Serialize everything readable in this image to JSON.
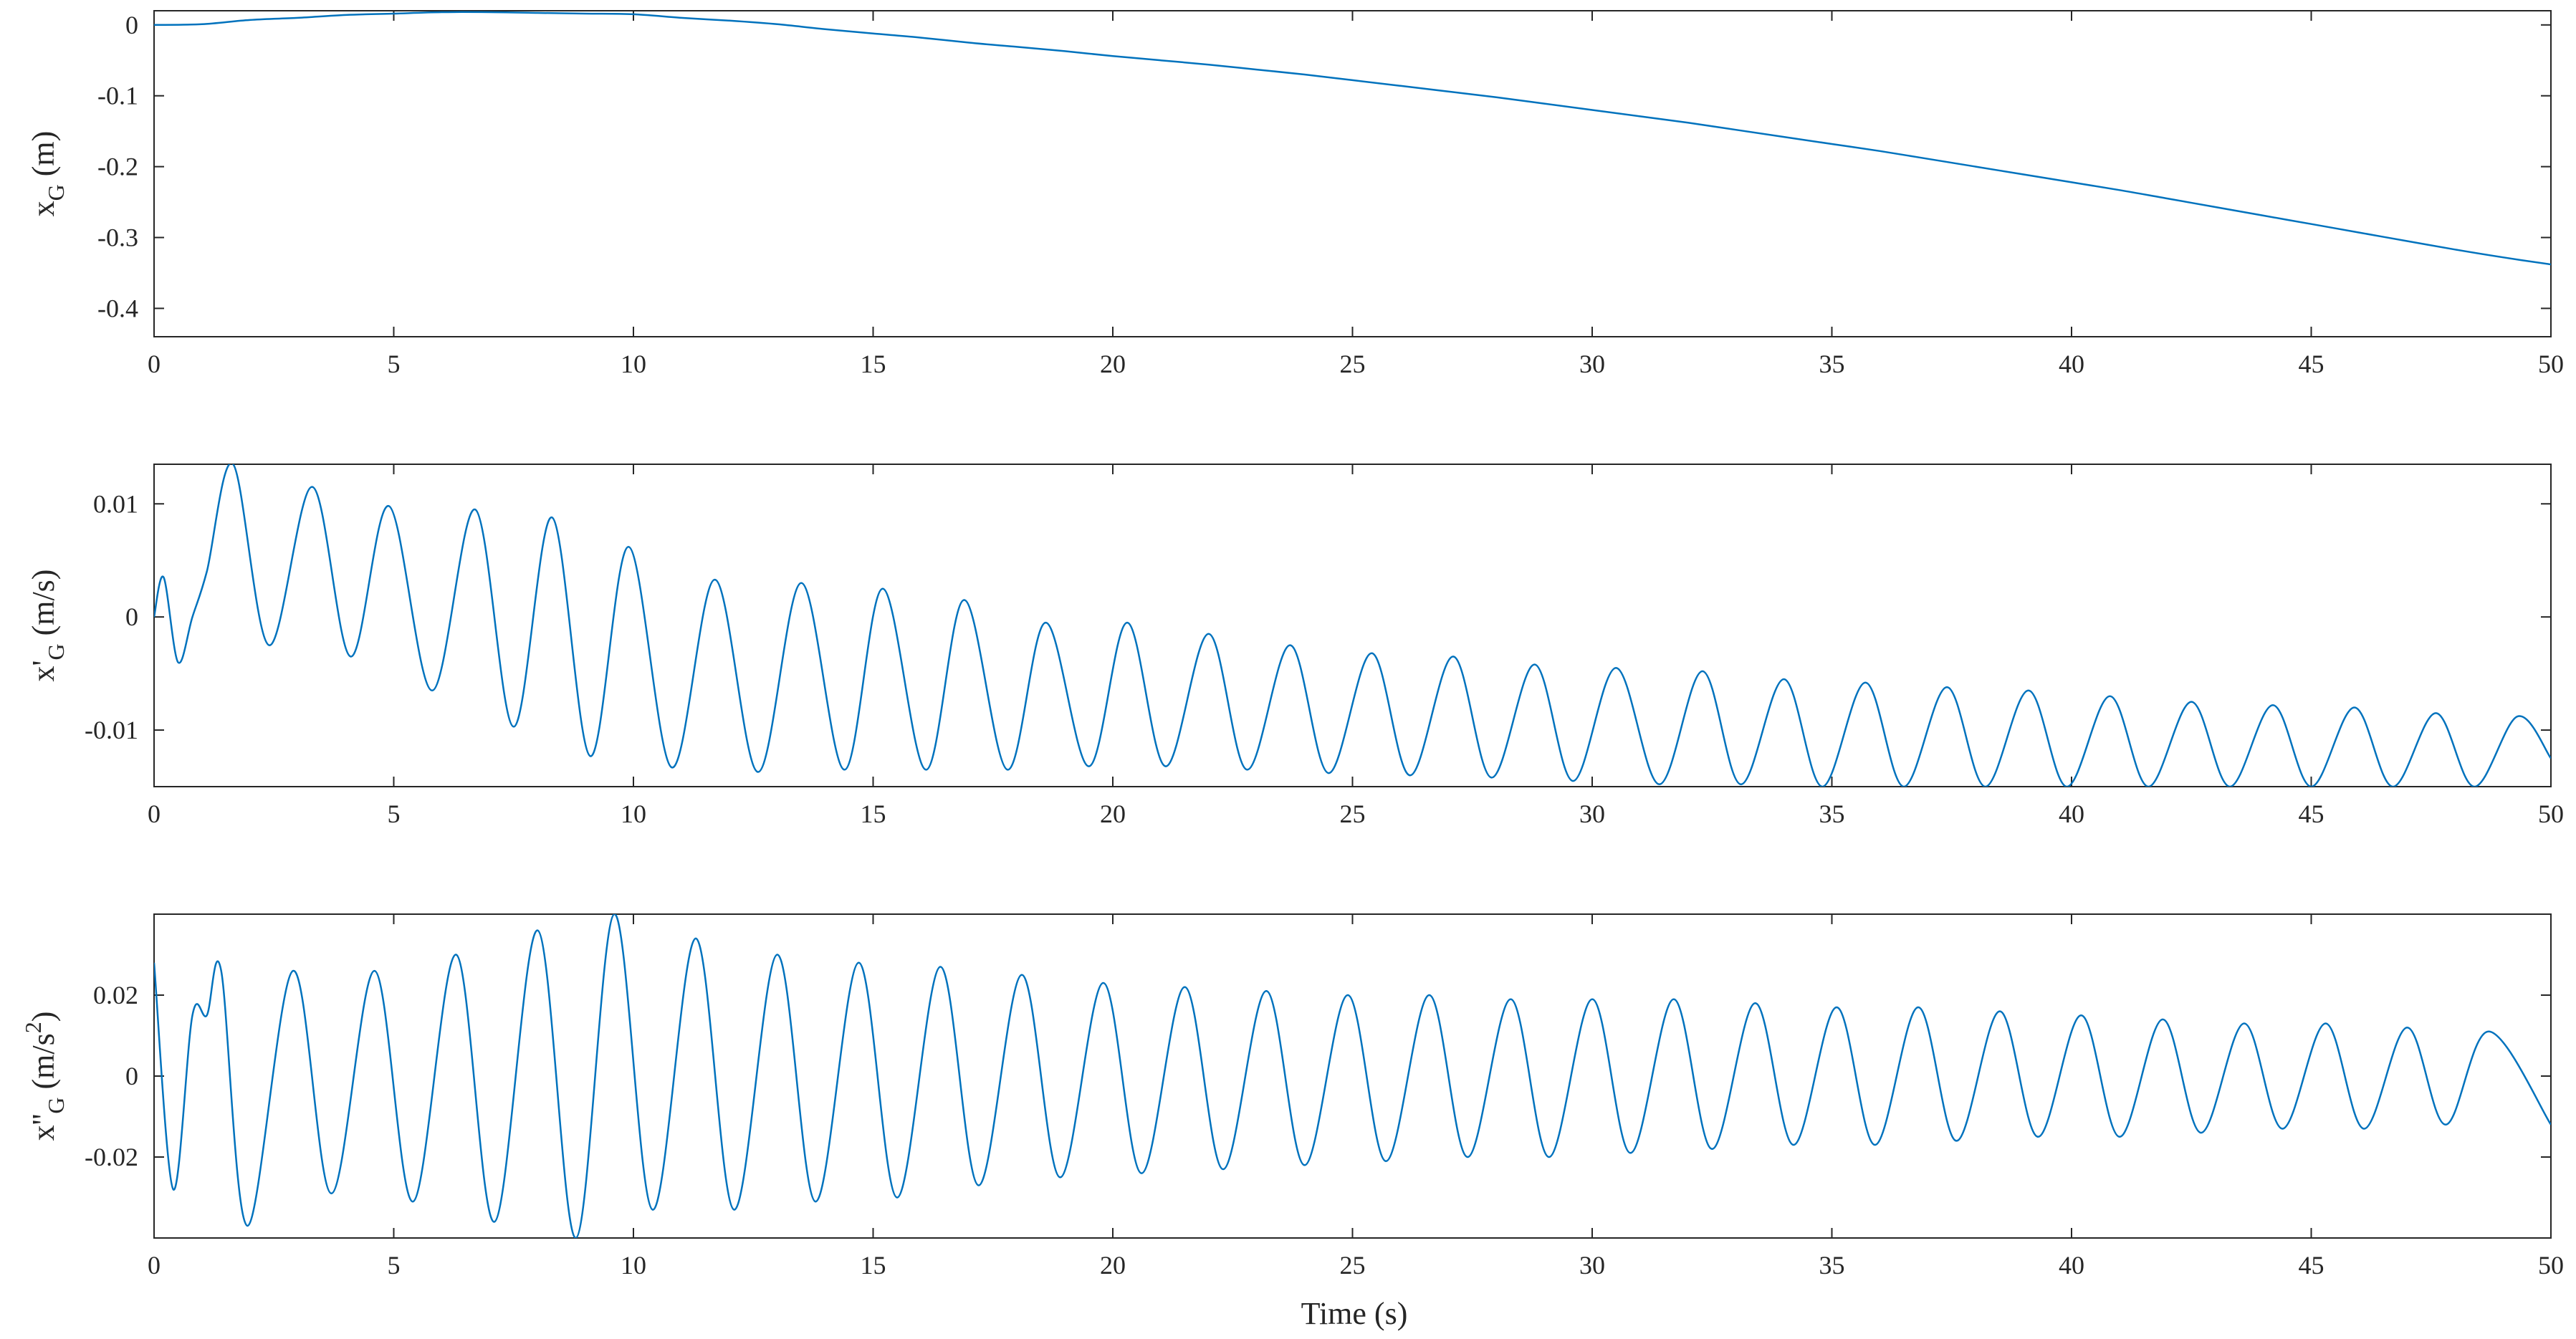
{
  "chart_data": [
    {
      "type": "line",
      "ylabel": {
        "base": "x",
        "sub": "G",
        "unit": " (m)",
        "sup": ""
      },
      "xlabel": "",
      "xlim": [
        0,
        50
      ],
      "ylim": [
        -0.44,
        0.02
      ],
      "xticks": [
        0,
        5,
        10,
        15,
        20,
        25,
        30,
        35,
        40,
        45,
        50
      ],
      "yticks": [
        0,
        -0.1,
        -0.2,
        -0.3,
        -0.4
      ],
      "ytick_labels": [
        "0",
        "-0.1",
        "-0.2",
        "-0.3",
        "-0.4"
      ],
      "grid": false,
      "series": [
        {
          "color": "#0072BD",
          "x": [
            0,
            1,
            2,
            3,
            4,
            5,
            6,
            7,
            8,
            9,
            10,
            11,
            12,
            13,
            14,
            15,
            16,
            17,
            18,
            19,
            20,
            21,
            22,
            23,
            24,
            25,
            26,
            27,
            28,
            29,
            30,
            31,
            32,
            33,
            34,
            35,
            36,
            37,
            38,
            39,
            40,
            41,
            42,
            43,
            44,
            45,
            46,
            47,
            48,
            49,
            50
          ],
          "values": [
            0.0,
            0.001,
            0.007,
            0.01,
            0.014,
            0.016,
            0.018,
            0.018,
            0.017,
            0.016,
            0.015,
            0.01,
            0.006,
            0.001,
            -0.006,
            -0.012,
            -0.018,
            -0.025,
            -0.031,
            -0.037,
            -0.044,
            -0.05,
            -0.056,
            -0.063,
            -0.07,
            -0.078,
            -0.086,
            -0.094,
            -0.102,
            -0.111,
            -0.12,
            -0.129,
            -0.138,
            -0.148,
            -0.158,
            -0.168,
            -0.178,
            -0.189,
            -0.2,
            -0.211,
            -0.222,
            -0.233,
            -0.245,
            -0.257,
            -0.269,
            -0.281,
            -0.293,
            -0.305,
            -0.317,
            -0.328,
            -0.338
          ]
        }
      ]
    },
    {
      "type": "line",
      "ylabel": {
        "base": "x'",
        "sub": "G",
        "unit": " (m/s)",
        "sup": ""
      },
      "xlabel": "",
      "xlim": [
        0,
        50
      ],
      "ylim": [
        -0.015,
        0.0135
      ],
      "xticks": [
        0,
        5,
        10,
        15,
        20,
        25,
        30,
        35,
        40,
        45,
        50
      ],
      "yticks": [
        0.01,
        0,
        -0.01
      ],
      "ytick_labels": [
        "0.01",
        "0",
        "-0.01"
      ],
      "grid": false,
      "series": [
        {
          "color": "#0072BD",
          "x": [
            0,
            0.2,
            0.5,
            0.8,
            1.1,
            1.65,
            2.4,
            3.3,
            4.1,
            4.9,
            5.8,
            6.7,
            7.5,
            8.3,
            9.1,
            9.9,
            10.8,
            11.7,
            12.6,
            13.5,
            14.4,
            15.2,
            16.1,
            16.9,
            17.8,
            18.6,
            19.5,
            20.3,
            21.1,
            22.0,
            22.8,
            23.7,
            24.5,
            25.4,
            26.2,
            27.1,
            27.9,
            28.8,
            29.6,
            30.5,
            31.4,
            32.3,
            33.1,
            34.0,
            34.8,
            35.7,
            36.5,
            37.4,
            38.2,
            39.1,
            39.9,
            40.8,
            41.6,
            42.5,
            43.3,
            44.2,
            45.0,
            45.9,
            46.7,
            47.6,
            48.4,
            49.3,
            50.0
          ],
          "values": [
            0.0,
            0.0035,
            -0.004,
            0.0,
            0.004,
            0.0135,
            -0.0025,
            0.0115,
            -0.0035,
            0.0098,
            -0.0065,
            0.0095,
            -0.0097,
            0.0088,
            -0.0123,
            0.0062,
            -0.0133,
            0.0033,
            -0.0137,
            0.003,
            -0.0135,
            0.0025,
            -0.0135,
            0.0015,
            -0.0135,
            -0.0005,
            -0.0132,
            -0.0005,
            -0.0132,
            -0.0015,
            -0.0135,
            -0.0025,
            -0.0138,
            -0.0032,
            -0.014,
            -0.0035,
            -0.0142,
            -0.0042,
            -0.0145,
            -0.0045,
            -0.0148,
            -0.0048,
            -0.0148,
            -0.0055,
            -0.015,
            -0.0058,
            -0.015,
            -0.0062,
            -0.015,
            -0.0065,
            -0.015,
            -0.007,
            -0.015,
            -0.0075,
            -0.015,
            -0.0078,
            -0.015,
            -0.008,
            -0.015,
            -0.0085,
            -0.015,
            -0.0088,
            -0.0125
          ]
        }
      ]
    },
    {
      "type": "line",
      "ylabel": {
        "base": "x''",
        "sub": "G",
        "unit": " (m/s",
        "sup": "2"
      },
      "xlabel": "Time (s)",
      "xlim": [
        0,
        50
      ],
      "ylim": [
        -0.04,
        0.04
      ],
      "xticks": [
        0,
        5,
        10,
        15,
        20,
        25,
        30,
        35,
        40,
        45,
        50
      ],
      "yticks": [
        0.02,
        0,
        -0.02
      ],
      "ytick_labels": [
        "0.02",
        "0",
        "-0.02"
      ],
      "grid": false,
      "series": [
        {
          "color": "#0072BD",
          "x": [
            0,
            0.4,
            0.8,
            1.1,
            1.4,
            1.95,
            2.9,
            3.7,
            4.6,
            5.4,
            6.3,
            7.1,
            8.0,
            8.8,
            9.6,
            10.4,
            11.3,
            12.1,
            13.0,
            13.8,
            14.7,
            15.5,
            16.4,
            17.2,
            18.1,
            18.9,
            19.8,
            20.6,
            21.5,
            22.3,
            23.2,
            24.0,
            24.9,
            25.7,
            26.6,
            27.4,
            28.3,
            29.1,
            30.0,
            30.8,
            31.7,
            32.5,
            33.4,
            34.2,
            35.1,
            35.9,
            36.8,
            37.6,
            38.5,
            39.3,
            40.2,
            41.0,
            41.9,
            42.7,
            43.6,
            44.4,
            45.3,
            46.1,
            47.0,
            47.8,
            48.7,
            50.0
          ],
          "values": [
            0.028,
            -0.028,
            0.015,
            0.015,
            0.026,
            -0.037,
            0.026,
            -0.029,
            0.026,
            -0.031,
            0.03,
            -0.036,
            0.036,
            -0.04,
            0.04,
            -0.033,
            0.034,
            -0.033,
            0.03,
            -0.031,
            0.028,
            -0.03,
            0.027,
            -0.027,
            0.025,
            -0.025,
            0.023,
            -0.024,
            0.022,
            -0.023,
            0.021,
            -0.022,
            0.02,
            -0.021,
            0.02,
            -0.02,
            0.019,
            -0.02,
            0.019,
            -0.019,
            0.019,
            -0.018,
            0.018,
            -0.017,
            0.017,
            -0.017,
            0.017,
            -0.016,
            0.016,
            -0.015,
            0.015,
            -0.015,
            0.014,
            -0.014,
            0.013,
            -0.013,
            0.013,
            -0.013,
            0.012,
            -0.012,
            0.011,
            -0.012
          ]
        }
      ]
    }
  ]
}
